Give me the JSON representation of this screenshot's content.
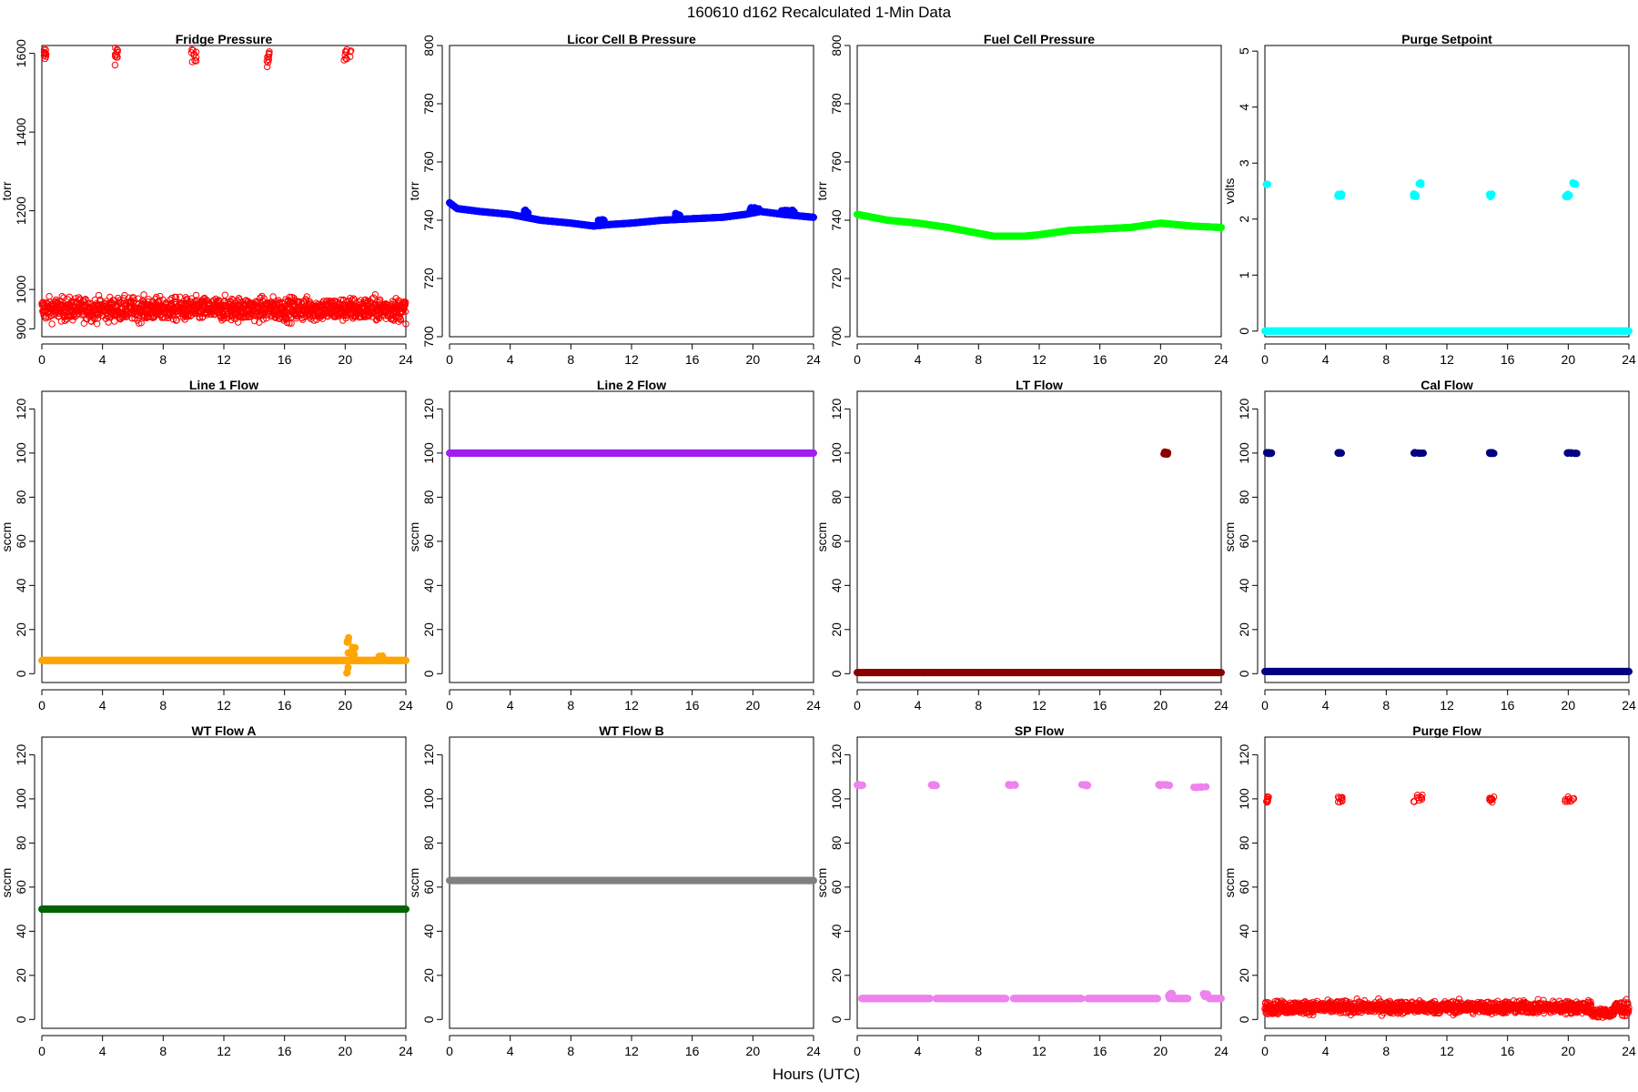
{
  "figure": {
    "title": "160610   d162   Recalculated 1-Min Data",
    "xlabel": "Hours (UTC)"
  },
  "chart_data": [
    {
      "type": "scatter",
      "title": "Fridge Pressure",
      "ylabel": "torr",
      "color": "#ff0000",
      "marker": "open-circle",
      "xlim": [
        0,
        24
      ],
      "ylim": [
        880,
        1620
      ],
      "xticks": [
        0,
        4,
        8,
        12,
        16,
        20,
        24
      ],
      "yticks": [
        900,
        1000,
        1200,
        1400,
        1600
      ],
      "series": [
        {
          "kind": "band",
          "x": [
            0,
            24
          ],
          "y_center": 950,
          "y_spread": 26
        },
        {
          "kind": "cluster",
          "x": [
            0.1,
            0.3
          ],
          "y": [
            1585,
            1610
          ]
        },
        {
          "kind": "cluster",
          "x": [
            4.8,
            5.0
          ],
          "y": [
            1570,
            1620
          ]
        },
        {
          "kind": "cluster",
          "x": [
            9.8,
            10.2
          ],
          "y": [
            1570,
            1620
          ]
        },
        {
          "kind": "cluster",
          "x": [
            14.8,
            15.0
          ],
          "y": [
            1565,
            1605
          ]
        },
        {
          "kind": "cluster",
          "x": [
            19.8,
            20.4
          ],
          "y": [
            1580,
            1612
          ]
        }
      ]
    },
    {
      "type": "scatter",
      "title": "Licor Cell B Pressure",
      "ylabel": "torr",
      "color": "#0000ff",
      "marker": "filled-circle",
      "xlim": [
        0,
        24
      ],
      "ylim": [
        700,
        800
      ],
      "xticks": [
        0,
        4,
        8,
        12,
        16,
        20,
        24
      ],
      "yticks": [
        700,
        720,
        740,
        760,
        780,
        800
      ],
      "series": [
        {
          "kind": "line-points",
          "x": [
            0,
            0.5,
            2,
            4,
            6,
            8,
            9.5,
            10.5,
            12,
            14,
            16,
            18,
            19.5,
            20.5,
            22,
            24
          ],
          "y": [
            746,
            744,
            743,
            742,
            740,
            739,
            738,
            738.5,
            739,
            740,
            740.5,
            741,
            742,
            743,
            742,
            741
          ]
        },
        {
          "kind": "cluster",
          "x": [
            4.9,
            5.2
          ],
          "y": [
            742,
            743.5
          ]
        },
        {
          "kind": "cluster",
          "x": [
            9.8,
            10.2
          ],
          "y": [
            739,
            740.5
          ]
        },
        {
          "kind": "cluster",
          "x": [
            14.9,
            15.2
          ],
          "y": [
            741,
            742.5
          ]
        },
        {
          "kind": "cluster",
          "x": [
            19.8,
            20.5
          ],
          "y": [
            743,
            744.5
          ]
        },
        {
          "kind": "cluster",
          "x": [
            21.8,
            22.8
          ],
          "y": [
            742.5,
            743.5
          ]
        }
      ]
    },
    {
      "type": "scatter",
      "title": "Fuel Cell Pressure",
      "ylabel": "torr",
      "color": "#00ff00",
      "marker": "filled-circle",
      "xlim": [
        0,
        24
      ],
      "ylim": [
        700,
        800
      ],
      "xticks": [
        0,
        4,
        8,
        12,
        16,
        20,
        24
      ],
      "yticks": [
        700,
        720,
        740,
        760,
        780,
        800
      ],
      "series": [
        {
          "kind": "line-points",
          "x": [
            0,
            2,
            4,
            6,
            8,
            9,
            10,
            11,
            12,
            14,
            16,
            18,
            20,
            21,
            22,
            24
          ],
          "y": [
            742,
            740,
            739,
            737.5,
            735.5,
            734.5,
            734.5,
            734.5,
            735,
            736.5,
            737,
            737.5,
            739,
            738.5,
            738,
            737.5
          ]
        }
      ]
    },
    {
      "type": "scatter",
      "title": "Purge Setpoint",
      "ylabel": "volts",
      "color": "#00ffff",
      "marker": "filled-circle",
      "xlim": [
        0,
        24
      ],
      "ylim": [
        -0.1,
        5.1
      ],
      "xticks": [
        0,
        4,
        8,
        12,
        16,
        20,
        24
      ],
      "yticks": [
        0,
        1,
        2,
        3,
        4,
        5
      ],
      "series": [
        {
          "kind": "line-points",
          "x": [
            0,
            24
          ],
          "y": [
            0,
            0
          ]
        },
        {
          "kind": "cluster",
          "x": [
            0.1,
            0.2
          ],
          "y": [
            2.62,
            2.62
          ]
        },
        {
          "kind": "cluster",
          "x": [
            4.8,
            5.1
          ],
          "y": [
            2.4,
            2.45
          ]
        },
        {
          "kind": "cluster",
          "x": [
            9.8,
            10.0
          ],
          "y": [
            2.4,
            2.45
          ]
        },
        {
          "kind": "cluster",
          "x": [
            10.1,
            10.3
          ],
          "y": [
            2.62,
            2.65
          ]
        },
        {
          "kind": "cluster",
          "x": [
            14.8,
            15.0
          ],
          "y": [
            2.4,
            2.45
          ]
        },
        {
          "kind": "cluster",
          "x": [
            19.8,
            20.1
          ],
          "y": [
            2.4,
            2.45
          ]
        },
        {
          "kind": "cluster",
          "x": [
            20.3,
            20.5
          ],
          "y": [
            2.62,
            2.65
          ]
        }
      ]
    },
    {
      "type": "scatter",
      "title": "Line 1 Flow",
      "ylabel": "sccm",
      "color": "#ffa500",
      "marker": "filled-circle",
      "xlim": [
        0,
        24
      ],
      "ylim": [
        -4,
        128
      ],
      "xticks": [
        0,
        4,
        8,
        12,
        16,
        20,
        24
      ],
      "yticks": [
        0,
        20,
        40,
        60,
        80,
        100,
        120
      ],
      "series": [
        {
          "kind": "line-points",
          "x": [
            0,
            20,
            24
          ],
          "y": [
            6,
            6,
            6
          ]
        },
        {
          "kind": "cluster",
          "x": [
            20.1,
            20.4
          ],
          "y": [
            -2,
            17
          ]
        },
        {
          "kind": "cluster",
          "x": [
            20.4,
            20.7
          ],
          "y": [
            6,
            12
          ]
        },
        {
          "kind": "cluster",
          "x": [
            22.2,
            22.5
          ],
          "y": [
            6,
            8
          ]
        }
      ]
    },
    {
      "type": "scatter",
      "title": "Line 2 Flow",
      "ylabel": "sccm",
      "color": "#a020f0",
      "marker": "filled-circle",
      "xlim": [
        0,
        24
      ],
      "ylim": [
        -4,
        128
      ],
      "xticks": [
        0,
        4,
        8,
        12,
        16,
        20,
        24
      ],
      "yticks": [
        0,
        20,
        40,
        60,
        80,
        100,
        120
      ],
      "series": [
        {
          "kind": "line-points",
          "x": [
            0,
            24
          ],
          "y": [
            100,
            100
          ]
        }
      ]
    },
    {
      "type": "scatter",
      "title": "LT Flow",
      "ylabel": "sccm",
      "color": "#8b0000",
      "marker": "filled-circle",
      "xlim": [
        0,
        24
      ],
      "ylim": [
        -4,
        128
      ],
      "xticks": [
        0,
        4,
        8,
        12,
        16,
        20,
        24
      ],
      "yticks": [
        0,
        20,
        40,
        60,
        80,
        100,
        120
      ],
      "series": [
        {
          "kind": "line-points",
          "x": [
            0,
            24
          ],
          "y": [
            0.5,
            0.5
          ]
        },
        {
          "kind": "cluster",
          "x": [
            20.0,
            20.5
          ],
          "y": [
            99.5,
            100.5
          ]
        }
      ]
    },
    {
      "type": "scatter",
      "title": "Cal Flow",
      "ylabel": "sccm",
      "color": "#000080",
      "marker": "filled-circle",
      "xlim": [
        0,
        24
      ],
      "ylim": [
        -4,
        128
      ],
      "xticks": [
        0,
        4,
        8,
        12,
        16,
        20,
        24
      ],
      "yticks": [
        0,
        20,
        40,
        60,
        80,
        100,
        120
      ],
      "series": [
        {
          "kind": "line-points",
          "x": [
            0,
            24
          ],
          "y": [
            1,
            1
          ]
        },
        {
          "kind": "cluster",
          "x": [
            0.1,
            0.5
          ],
          "y": [
            99.8,
            100.2
          ]
        },
        {
          "kind": "cluster",
          "x": [
            4.8,
            5.1
          ],
          "y": [
            99.8,
            100.2
          ]
        },
        {
          "kind": "cluster",
          "x": [
            9.8,
            10.5
          ],
          "y": [
            99.8,
            100.2
          ]
        },
        {
          "kind": "cluster",
          "x": [
            14.8,
            15.1
          ],
          "y": [
            99.8,
            100.2
          ]
        },
        {
          "kind": "cluster",
          "x": [
            19.8,
            20.6
          ],
          "y": [
            99.8,
            100.2
          ]
        }
      ]
    },
    {
      "type": "scatter",
      "title": "WT Flow A",
      "ylabel": "sccm",
      "color": "#006400",
      "marker": "filled-circle",
      "xlim": [
        0,
        24
      ],
      "ylim": [
        -4,
        128
      ],
      "xticks": [
        0,
        4,
        8,
        12,
        16,
        20,
        24
      ],
      "yticks": [
        0,
        20,
        40,
        60,
        80,
        100,
        120
      ],
      "series": [
        {
          "kind": "line-points",
          "x": [
            0,
            24
          ],
          "y": [
            50,
            50
          ]
        }
      ]
    },
    {
      "type": "scatter",
      "title": "WT Flow B",
      "ylabel": "sccm",
      "color": "#808080",
      "marker": "filled-circle",
      "xlim": [
        0,
        24
      ],
      "ylim": [
        -4,
        128
      ],
      "xticks": [
        0,
        4,
        8,
        12,
        16,
        20,
        24
      ],
      "yticks": [
        0,
        20,
        40,
        60,
        80,
        100,
        120
      ],
      "series": [
        {
          "kind": "line-points",
          "x": [
            0,
            24
          ],
          "y": [
            63,
            63
          ]
        }
      ]
    },
    {
      "type": "scatter",
      "title": "SP Flow",
      "ylabel": "sccm",
      "color": "#ee82ee",
      "marker": "filled-circle",
      "xlim": [
        0,
        24
      ],
      "ylim": [
        -4,
        128
      ],
      "xticks": [
        0,
        4,
        8,
        12,
        16,
        20,
        24
      ],
      "yticks": [
        0,
        20,
        40,
        60,
        80,
        100,
        120
      ],
      "series": [
        {
          "kind": "line-points",
          "x": [
            0.3,
            4.8
          ],
          "y": [
            9.5,
            9.5
          ]
        },
        {
          "kind": "line-points",
          "x": [
            5.2,
            9.8
          ],
          "y": [
            9.5,
            9.5
          ]
        },
        {
          "kind": "line-points",
          "x": [
            10.3,
            14.8
          ],
          "y": [
            9.5,
            9.5
          ]
        },
        {
          "kind": "line-points",
          "x": [
            15.2,
            19.8
          ],
          "y": [
            9.5,
            9.5
          ]
        },
        {
          "kind": "line-points",
          "x": [
            20.6,
            21.8
          ],
          "y": [
            9.5,
            9.5
          ]
        },
        {
          "kind": "line-points",
          "x": [
            23.2,
            24
          ],
          "y": [
            9.5,
            9.5
          ]
        },
        {
          "kind": "cluster",
          "x": [
            0,
            0.4
          ],
          "y": [
            106,
            106.5
          ]
        },
        {
          "kind": "cluster",
          "x": [
            4.8,
            5.3
          ],
          "y": [
            106,
            106.5
          ]
        },
        {
          "kind": "cluster",
          "x": [
            9.8,
            10.5
          ],
          "y": [
            106,
            106.5
          ]
        },
        {
          "kind": "cluster",
          "x": [
            14.8,
            15.2
          ],
          "y": [
            106,
            106.5
          ]
        },
        {
          "kind": "cluster",
          "x": [
            19.8,
            20.7
          ],
          "y": [
            106,
            106.5
          ]
        },
        {
          "kind": "cluster",
          "x": [
            21.9,
            23.1
          ],
          "y": [
            105,
            105.5
          ]
        },
        {
          "kind": "cluster",
          "x": [
            20.5,
            20.8
          ],
          "y": [
            10,
            12
          ]
        },
        {
          "kind": "cluster",
          "x": [
            22.8,
            23.1
          ],
          "y": [
            10,
            12
          ]
        }
      ]
    },
    {
      "type": "scatter",
      "title": "Purge Flow",
      "ylabel": "sccm",
      "color": "#ff0000",
      "marker": "open-circle",
      "xlim": [
        0,
        24
      ],
      "ylim": [
        -4,
        128
      ],
      "xticks": [
        0,
        4,
        8,
        12,
        16,
        20,
        24
      ],
      "yticks": [
        0,
        20,
        40,
        60,
        80,
        100,
        120
      ],
      "series": [
        {
          "kind": "band",
          "x": [
            0,
            21.5
          ],
          "y_center": 5.5,
          "y_spread": 2.5
        },
        {
          "kind": "band",
          "x": [
            21.5,
            23
          ],
          "y_center": 3,
          "y_spread": 1.8
        },
        {
          "kind": "band",
          "x": [
            23,
            24
          ],
          "y_center": 5,
          "y_spread": 3
        },
        {
          "kind": "cluster",
          "x": [
            0.1,
            0.3
          ],
          "y": [
            98.5,
            101
          ]
        },
        {
          "kind": "cluster",
          "x": [
            4.8,
            5.1
          ],
          "y": [
            98.5,
            101
          ]
        },
        {
          "kind": "cluster",
          "x": [
            9.8,
            10.4
          ],
          "y": [
            98.5,
            102
          ]
        },
        {
          "kind": "cluster",
          "x": [
            14.8,
            15.1
          ],
          "y": [
            98.5,
            101
          ]
        },
        {
          "kind": "cluster",
          "x": [
            19.8,
            20.4
          ],
          "y": [
            98.5,
            101
          ]
        }
      ]
    }
  ]
}
